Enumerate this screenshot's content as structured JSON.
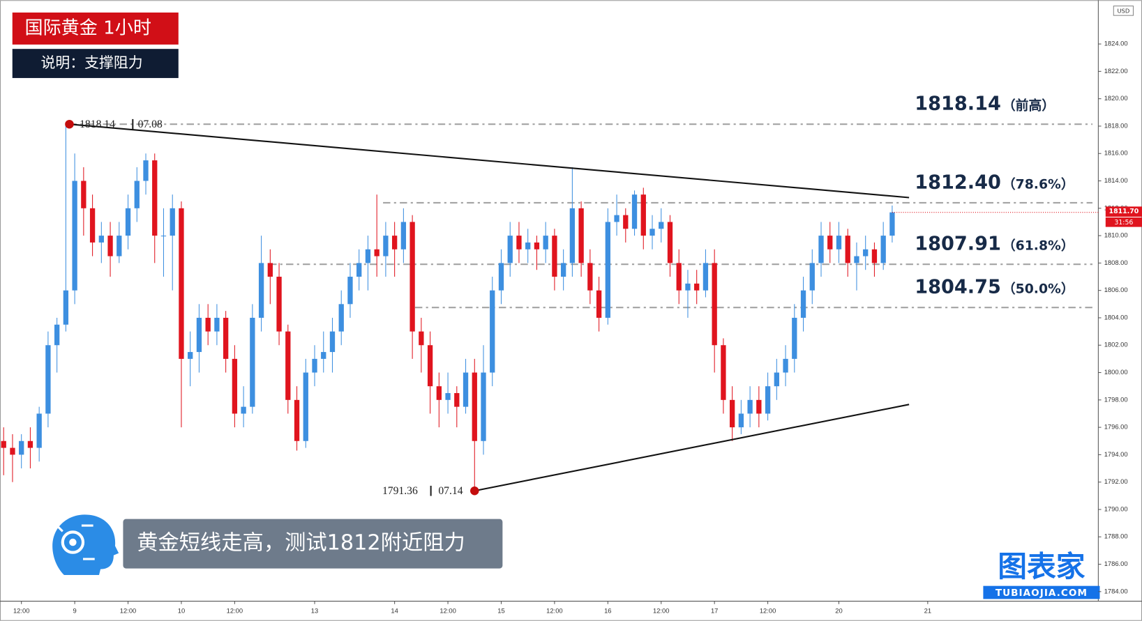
{
  "chart_data": {
    "type": "candlestick",
    "title": "国际黄金 1小时",
    "subtitle": "说明：支撑阻力",
    "caption": "黄金短线走高，测试1812附近阻力",
    "currency": "USD",
    "colors": {
      "up": "#3d8fe0",
      "down": "#e0141e"
    },
    "categories": [
      null,
      null,
      "12:00",
      null,
      null,
      null,
      null,
      null,
      "9",
      null,
      null,
      null,
      null,
      null,
      "12:00",
      null,
      null,
      null,
      null,
      null,
      "10",
      null,
      null,
      null,
      null,
      null,
      "12:00",
      null,
      null,
      null,
      null,
      null,
      null,
      null,
      null,
      "13",
      null,
      null,
      null,
      null,
      null,
      null,
      null,
      null,
      "14",
      null,
      null,
      null,
      null,
      null,
      "12:00",
      null,
      null,
      null,
      null,
      null,
      "15",
      null,
      null,
      null,
      null,
      null,
      "12:00",
      null,
      null,
      null,
      null,
      null,
      "16",
      null,
      null,
      null,
      null,
      null,
      "12:00",
      null,
      null,
      null,
      null,
      null,
      "17",
      null,
      null,
      null,
      null,
      null,
      "12:00",
      null,
      null,
      null,
      null,
      null,
      null,
      null,
      "20",
      null,
      null,
      null,
      null,
      null,
      null,
      null,
      null,
      null,
      "21"
    ],
    "open": [
      1795,
      1794.5,
      1794,
      1795,
      1794.5,
      1797,
      1802,
      1803.5,
      1806,
      1814,
      1812,
      1809.5,
      1810,
      1808.5,
      1810,
      1812,
      1814,
      1815.5,
      1810,
      1810,
      1812,
      1801,
      1801.5,
      1804,
      1803,
      1804,
      1801,
      1797,
      1797.5,
      1804,
      1808,
      1807,
      1803,
      1798,
      1795,
      1800,
      1801,
      1801.5,
      1803,
      1805,
      1807,
      1808,
      1809,
      1808.5,
      1810,
      1809,
      1811,
      1803,
      1802,
      1799,
      1798,
      1798.5,
      1797.5,
      1800,
      1795,
      1800,
      1806,
      1808,
      1810,
      1809,
      1809.5,
      1809,
      1810,
      1807,
      1808,
      1812,
      1808,
      1806,
      1804,
      1811,
      1811.5,
      1810.5,
      1813,
      1810,
      1810.5,
      1811,
      1808,
      1806,
      1806.5,
      1806,
      1808,
      1802,
      1798,
      1796,
      1797,
      1798,
      1797,
      1799,
      1800,
      1801,
      1804,
      1806,
      1808,
      1810,
      1809,
      1810,
      1808,
      1808.5,
      1809,
      1808,
      1810,
      null,
      null,
      null,
      null
    ],
    "high": [
      1796,
      1795.5,
      1795.5,
      1796,
      1797.5,
      1803,
      1804,
      1818.14,
      1816,
      1815,
      1813,
      1811,
      1811,
      1811,
      1813,
      1815,
      1816,
      1816,
      1812,
      1813,
      1812.5,
      1803,
      1805,
      1805,
      1805,
      1804.5,
      1802,
      1799,
      1805,
      1810,
      1809,
      1808,
      1803.5,
      1799,
      1801,
      1802,
      1803,
      1804,
      1806,
      1808,
      1809,
      1810,
      1813,
      1811,
      1811,
      1812,
      1811.5,
      1804,
      1803,
      1800,
      1800,
      1799,
      1801,
      1801,
      1802,
      1807,
      1809,
      1811,
      1811,
      1810.5,
      1810,
      1811,
      1810.5,
      1809,
      1815,
      1812.5,
      1809,
      1807,
      1812,
      1813,
      1812,
      1813.3,
      1813.5,
      1811.5,
      1812,
      1811.5,
      1809,
      1807.5,
      1807.5,
      1809,
      1809,
      1802.5,
      1799,
      1798,
      1799,
      1799,
      1800,
      1801,
      1802,
      1805,
      1807,
      1809,
      1811,
      1811,
      1811,
      1810.5,
      1809.5,
      1810,
      1809.5,
      1811,
      1812.2,
      null,
      null,
      null,
      null
    ],
    "low": [
      1792.5,
      1792,
      1793,
      1793,
      1793.5,
      1796,
      1800,
      1803,
      1805,
      1810,
      1808.5,
      1808,
      1807,
      1808,
      1809,
      1811,
      1813,
      1808,
      1807,
      1806,
      1796,
      1799,
      1800,
      1802,
      1802,
      1800,
      1796,
      1796,
      1797,
      1803,
      1805,
      1802,
      1797,
      1794.3,
      1794.5,
      1799,
      1800,
      1800,
      1802,
      1804,
      1806,
      1806,
      1807,
      1807,
      1807,
      1808,
      1801,
      1800,
      1797,
      1796,
      1797,
      1796,
      1797,
      1791.36,
      1794,
      1799,
      1805,
      1807,
      1808,
      1808,
      1807.5,
      1808,
      1806,
      1806,
      1807,
      1807,
      1805,
      1803,
      1803.5,
      1810,
      1809.5,
      1810,
      1809,
      1809,
      1809.5,
      1807,
      1805,
      1804,
      1805,
      1805.5,
      1800,
      1797,
      1795,
      1795.5,
      1796,
      1796,
      1796.5,
      1798,
      1799,
      1800,
      1803,
      1805,
      1807,
      1808,
      1808,
      1807,
      1806,
      1807.5,
      1807,
      1807.5,
      1809.5,
      null,
      null,
      null,
      null
    ],
    "close": [
      1794.5,
      1794,
      1795,
      1794.5,
      1797,
      1802,
      1803.5,
      1806,
      1814,
      1812,
      1809.5,
      1810,
      1808.5,
      1810,
      1812,
      1814,
      1815.5,
      1810,
      1810,
      1812,
      1801,
      1801.5,
      1804,
      1803,
      1804,
      1801,
      1797,
      1797.5,
      1804,
      1808,
      1807,
      1803,
      1798,
      1795,
      1800,
      1801,
      1801.5,
      1803,
      1805,
      1807,
      1808,
      1809,
      1808.5,
      1810,
      1809,
      1811,
      1803,
      1802,
      1799,
      1798,
      1798.5,
      1797.5,
      1800,
      1795,
      1800,
      1806,
      1808,
      1810,
      1809,
      1809.5,
      1809,
      1810,
      1807,
      1808,
      1812,
      1808,
      1806,
      1804,
      1811,
      1811.5,
      1810.5,
      1813,
      1810,
      1810.5,
      1811,
      1808,
      1806,
      1806.5,
      1806,
      1808,
      1802,
      1798,
      1796,
      1797,
      1798,
      1797,
      1799,
      1800,
      1801,
      1804,
      1806,
      1808,
      1810,
      1809,
      1810,
      1808,
      1808.5,
      1809,
      1808,
      1810,
      1811.7,
      null,
      null,
      null,
      null
    ],
    "ylim": [
      1783.3,
      1827.2
    ],
    "yticks": [
      {
        "value": 1784,
        "label": "1784.00"
      },
      {
        "value": 1786,
        "label": "1786.00"
      },
      {
        "value": 1788,
        "label": "1788.00"
      },
      {
        "value": 1790,
        "label": "1790.00"
      },
      {
        "value": 1792,
        "label": "1792.00"
      },
      {
        "value": 1794,
        "label": "1794.00"
      },
      {
        "value": 1796,
        "label": "1796.00"
      },
      {
        "value": 1798,
        "label": "1798.00"
      },
      {
        "value": 1800,
        "label": "1800.00"
      },
      {
        "value": 1802,
        "label": "1802.00"
      },
      {
        "value": 1804,
        "label": "1804.00"
      },
      {
        "value": 1806,
        "label": "1806.00"
      },
      {
        "value": 1808,
        "label": "1808.00"
      },
      {
        "value": 1810,
        "label": "1810.00"
      },
      {
        "value": 1812,
        "label": "1812.00"
      },
      {
        "value": 1814,
        "label": "1814.00"
      },
      {
        "value": 1816,
        "label": "1816.00"
      },
      {
        "value": 1818,
        "label": "1818.00"
      },
      {
        "value": 1820,
        "label": "1820.00"
      },
      {
        "value": 1822,
        "label": "1822.00"
      },
      {
        "value": 1824,
        "label": "1824.00"
      }
    ],
    "levels": [
      {
        "value": 1818.14,
        "label": "1818.14",
        "note": "（前高）",
        "from": 7.4
      },
      {
        "value": 1812.4,
        "label": "1812.40",
        "note": "（78.6%）",
        "from": 42.7
      },
      {
        "value": 1807.91,
        "label": "1807.91",
        "note": "（61.8%）",
        "from": 29.9
      },
      {
        "value": 1804.75,
        "label": "1804.75",
        "note": "（50.0%）",
        "from": 46.3
      }
    ],
    "trendlines": [
      {
        "x": [
          7.4,
          101.9
        ],
        "y": [
          1818.14,
          1812.78
        ]
      },
      {
        "x": [
          53,
          101.9
        ],
        "y": [
          1791.36,
          1797.67
        ]
      }
    ],
    "annotations": [
      {
        "x": 7.4,
        "value": 1818.14,
        "label": "1818.14",
        "date": "07.08"
      },
      {
        "x": 53,
        "value": 1791.36,
        "label": "1791.36",
        "date": "07.14"
      }
    ],
    "last_price": {
      "value": 1811.7,
      "label": "1811.70"
    },
    "countdown": "31:56"
  },
  "logo": {
    "name": "图表家",
    "site": "TUBIAOJIA.COM"
  }
}
